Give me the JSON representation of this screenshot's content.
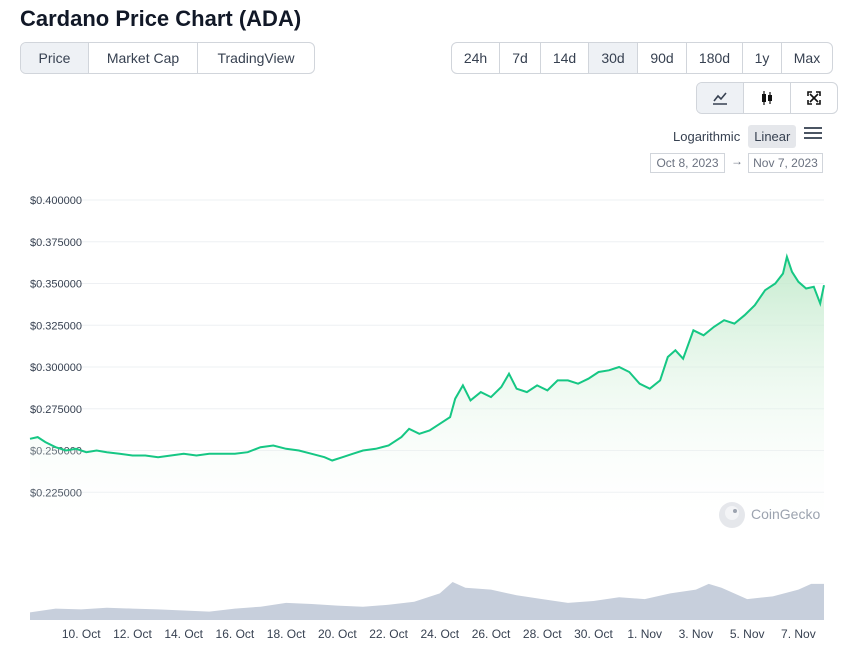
{
  "title": "Cardano Price Chart (ADA)",
  "tabs": [
    "Price",
    "Market Cap",
    "TradingView"
  ],
  "active_tab": "Price",
  "ranges": [
    "24h",
    "7d",
    "14d",
    "30d",
    "90d",
    "180d",
    "1y",
    "Max"
  ],
  "active_range": "30d",
  "view_icons": [
    "line-chart-icon",
    "candlestick-icon",
    "fullscreen-icon"
  ],
  "scale_options": [
    "Logarithmic",
    "Linear"
  ],
  "active_scale": "Linear",
  "date_from": "Oct 8, 2023",
  "date_arrow": "→",
  "date_to": "Nov 7, 2023",
  "watermark": "CoinGecko",
  "colors": {
    "line": "#16c784",
    "fill_top": "#d7f3df",
    "volume": "#c7cfdc",
    "grid": "#eef0f3"
  },
  "chart_data": {
    "type": "area",
    "title": "Cardano Price Chart (ADA)",
    "y_tick_labels": [
      "$0.400000",
      "$0.375000",
      "$0.350000",
      "$0.325000",
      "$0.300000",
      "$0.275000",
      "$0.250000",
      "$0.225000"
    ],
    "y_ticks": [
      0.4,
      0.375,
      0.35,
      0.325,
      0.3,
      0.275,
      0.25,
      0.225
    ],
    "ylim": [
      0.2,
      0.4
    ],
    "x_tick_labels": [
      "10. Oct",
      "12. Oct",
      "14. Oct",
      "16. Oct",
      "18. Oct",
      "20. Oct",
      "22. Oct",
      "24. Oct",
      "26. Oct",
      "28. Oct",
      "30. Oct",
      "1. Nov",
      "3. Nov",
      "5. Nov",
      "7. Nov"
    ],
    "x_tick_days": [
      2,
      4,
      6,
      8,
      10,
      12,
      14,
      16,
      18,
      20,
      22,
      24,
      26,
      28,
      30
    ],
    "series": [
      {
        "points": [
          [
            0.0,
            0.257
          ],
          [
            0.3,
            0.258
          ],
          [
            0.6,
            0.255
          ],
          [
            1.0,
            0.252
          ],
          [
            1.4,
            0.25
          ],
          [
            1.8,
            0.251
          ],
          [
            2.2,
            0.249
          ],
          [
            2.6,
            0.25
          ],
          [
            3.0,
            0.249
          ],
          [
            3.5,
            0.248
          ],
          [
            4.0,
            0.247
          ],
          [
            4.5,
            0.247
          ],
          [
            5.0,
            0.246
          ],
          [
            5.5,
            0.247
          ],
          [
            6.0,
            0.248
          ],
          [
            6.5,
            0.247
          ],
          [
            7.0,
            0.248
          ],
          [
            7.5,
            0.248
          ],
          [
            8.0,
            0.248
          ],
          [
            8.5,
            0.249
          ],
          [
            9.0,
            0.252
          ],
          [
            9.5,
            0.253
          ],
          [
            10.0,
            0.251
          ],
          [
            10.5,
            0.25
          ],
          [
            11.0,
            0.248
          ],
          [
            11.5,
            0.246
          ],
          [
            11.8,
            0.244
          ],
          [
            12.2,
            0.246
          ],
          [
            12.6,
            0.248
          ],
          [
            13.0,
            0.25
          ],
          [
            13.5,
            0.251
          ],
          [
            14.0,
            0.253
          ],
          [
            14.5,
            0.258
          ],
          [
            14.8,
            0.263
          ],
          [
            15.2,
            0.26
          ],
          [
            15.6,
            0.262
          ],
          [
            16.0,
            0.266
          ],
          [
            16.4,
            0.27
          ],
          [
            16.6,
            0.281
          ],
          [
            16.9,
            0.289
          ],
          [
            17.2,
            0.28
          ],
          [
            17.6,
            0.285
          ],
          [
            18.0,
            0.282
          ],
          [
            18.4,
            0.288
          ],
          [
            18.7,
            0.296
          ],
          [
            19.0,
            0.287
          ],
          [
            19.4,
            0.285
          ],
          [
            19.8,
            0.289
          ],
          [
            20.2,
            0.286
          ],
          [
            20.6,
            0.292
          ],
          [
            21.0,
            0.292
          ],
          [
            21.4,
            0.29
          ],
          [
            21.8,
            0.293
          ],
          [
            22.2,
            0.297
          ],
          [
            22.6,
            0.298
          ],
          [
            23.0,
            0.3
          ],
          [
            23.4,
            0.297
          ],
          [
            23.8,
            0.29
          ],
          [
            24.2,
            0.287
          ],
          [
            24.6,
            0.292
          ],
          [
            24.9,
            0.306
          ],
          [
            25.2,
            0.31
          ],
          [
            25.5,
            0.305
          ],
          [
            25.9,
            0.322
          ],
          [
            26.3,
            0.319
          ],
          [
            26.7,
            0.324
          ],
          [
            27.1,
            0.328
          ],
          [
            27.5,
            0.326
          ],
          [
            27.9,
            0.331
          ],
          [
            28.3,
            0.337
          ],
          [
            28.7,
            0.346
          ],
          [
            29.1,
            0.35
          ],
          [
            29.4,
            0.356
          ],
          [
            29.55,
            0.366
          ],
          [
            29.75,
            0.357
          ],
          [
            30.0,
            0.351
          ],
          [
            30.3,
            0.347
          ],
          [
            30.6,
            0.348
          ],
          [
            30.85,
            0.338
          ],
          [
            31.0,
            0.349
          ]
        ]
      }
    ],
    "volume_series": [
      [
        0,
        0.2
      ],
      [
        1,
        0.3
      ],
      [
        2,
        0.28
      ],
      [
        3,
        0.32
      ],
      [
        4,
        0.3
      ],
      [
        5,
        0.28
      ],
      [
        6,
        0.25
      ],
      [
        7,
        0.22
      ],
      [
        8,
        0.3
      ],
      [
        9,
        0.35
      ],
      [
        10,
        0.45
      ],
      [
        11,
        0.42
      ],
      [
        12,
        0.38
      ],
      [
        13,
        0.35
      ],
      [
        14,
        0.4
      ],
      [
        15,
        0.48
      ],
      [
        16,
        0.7
      ],
      [
        16.5,
        1.0
      ],
      [
        17,
        0.85
      ],
      [
        18,
        0.8
      ],
      [
        19,
        0.65
      ],
      [
        20,
        0.55
      ],
      [
        21,
        0.45
      ],
      [
        22,
        0.5
      ],
      [
        23,
        0.6
      ],
      [
        24,
        0.55
      ],
      [
        25,
        0.7
      ],
      [
        26,
        0.8
      ],
      [
        26.5,
        0.95
      ],
      [
        27,
        0.85
      ],
      [
        28,
        0.55
      ],
      [
        29,
        0.62
      ],
      [
        30,
        0.8
      ],
      [
        30.5,
        0.95
      ],
      [
        31,
        0.95
      ]
    ]
  }
}
